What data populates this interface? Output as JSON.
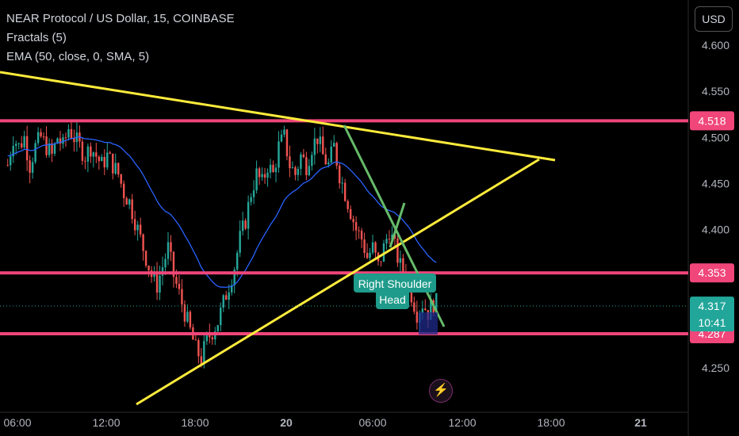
{
  "legend": {
    "title": "NEAR Protocol / US Dollar, 15, COINBASE",
    "indicator1": "Fractals (5)",
    "indicator2": "EMA (50, close, 0, SMA, 5)"
  },
  "currency_button": "USD",
  "icons": {
    "alert": "lightning-icon"
  },
  "colors": {
    "background": "#000000",
    "up_candle": "#26a69a",
    "down_candle": "#ef5350",
    "ema": "#2962ff",
    "trendline_yellow": "#ffeb3b",
    "trendline_green": "#66bb6a",
    "level_line": "#f0467a",
    "current_price_label": "#22a69a"
  },
  "chart_data": {
    "type": "candlestick",
    "symbol": "NEAR Protocol / US Dollar",
    "interval": "15",
    "exchange": "COINBASE",
    "price_axis_ticks": [
      4.6,
      4.55,
      4.5,
      4.45,
      4.4,
      4.35,
      4.3,
      4.25
    ],
    "price_axis_tick_labels": [
      "4.600",
      "4.550",
      "4.500",
      "4.450",
      "4.400",
      "4.350",
      "4.300",
      "4.250"
    ],
    "time_axis_labels": [
      "06:00",
      "12:00",
      "18:00",
      "20",
      "06:00",
      "12:00",
      "18:00",
      "21"
    ],
    "ylim": [
      4.215,
      4.63
    ],
    "horizontal_levels": [
      {
        "label": "4.518",
        "value": 4.518
      },
      {
        "label": "4.353",
        "value": 4.353
      },
      {
        "label": "4.287",
        "value": 4.287
      }
    ],
    "current_price": {
      "label": "4.317",
      "value": 4.317,
      "countdown": "10:41"
    },
    "annotations": [
      "Right Shoulder",
      "Head"
    ],
    "candles_close_path": [
      4.47,
      4.5,
      4.49,
      4.5,
      4.47,
      4.49,
      4.5,
      4.49,
      4.48,
      4.5,
      4.49,
      4.51,
      4.5,
      4.49,
      4.48,
      4.49,
      4.48,
      4.47,
      4.48,
      4.47,
      4.46,
      4.44,
      4.43,
      4.41,
      4.39,
      4.37,
      4.35,
      4.34,
      4.36,
      4.38,
      4.35,
      4.33,
      4.31,
      4.29,
      4.27,
      4.26,
      4.28,
      4.29,
      4.3,
      4.32,
      4.34,
      4.36,
      4.39,
      4.41,
      4.44,
      4.46,
      4.45,
      4.47,
      4.46,
      4.49,
      4.5,
      4.47,
      4.46,
      4.48,
      4.47,
      4.49,
      4.5,
      4.48,
      4.47,
      4.49,
      4.46,
      4.44,
      4.42,
      4.4,
      4.39,
      4.37,
      4.38,
      4.36,
      4.38,
      4.4,
      4.38,
      4.36,
      4.35,
      4.33,
      4.31,
      4.32,
      4.31,
      4.32
    ]
  }
}
